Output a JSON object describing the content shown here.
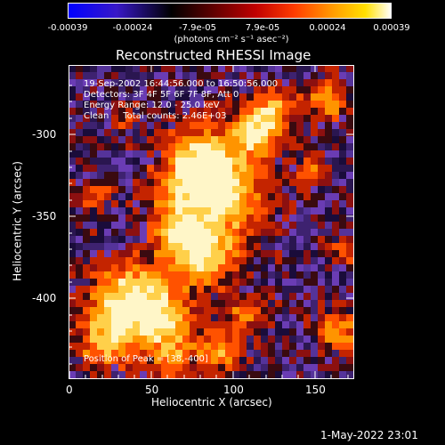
{
  "colorbar": {
    "colors": [
      "#0000ff",
      "#3a18e0",
      "#000000",
      "#5a0000",
      "#b00000",
      "#ff3000",
      "#ff9a00",
      "#ffe000",
      "#ffffcc",
      "#ffffff"
    ],
    "tick_labels": [
      "-0.00039",
      "-0.00024",
      "-7.9e-05",
      "7.9e-05",
      "0.00024",
      "0.00039"
    ],
    "units": "(photons cm⁻² s⁻¹ asec⁻²)"
  },
  "plot": {
    "title": "Reconstructed RHESSI Image",
    "xlabel": "Heliocentric X (arcsec)",
    "ylabel": "Heliocentric Y (arcsec)",
    "x_ticks": [
      "0",
      "50",
      "100",
      "150"
    ],
    "y_ticks": [
      "-300",
      "-350",
      "-400"
    ],
    "colors": [
      "#1a0033",
      "#3b1a66",
      "#5533aa",
      "#6b3cb8",
      "#9a1a1a",
      "#cc2a00",
      "#ff5500",
      "#ff9900",
      "#ffd966",
      "#ffffff"
    ]
  },
  "info": {
    "line1": "19-Sep-2002 16:44:56.000 to 16:50:56.000",
    "line2": "Detectors: 3F 4F 5F 6F 7F 8F, Att 0",
    "line3": "Energy Range: 12.0 - 25.0 keV",
    "line4": "Clean     Total counts: 2.46E+03",
    "peak": "Position of Peak = [38,-400]"
  },
  "footer": {
    "timestamp": "1-May-2022 23:01"
  }
}
